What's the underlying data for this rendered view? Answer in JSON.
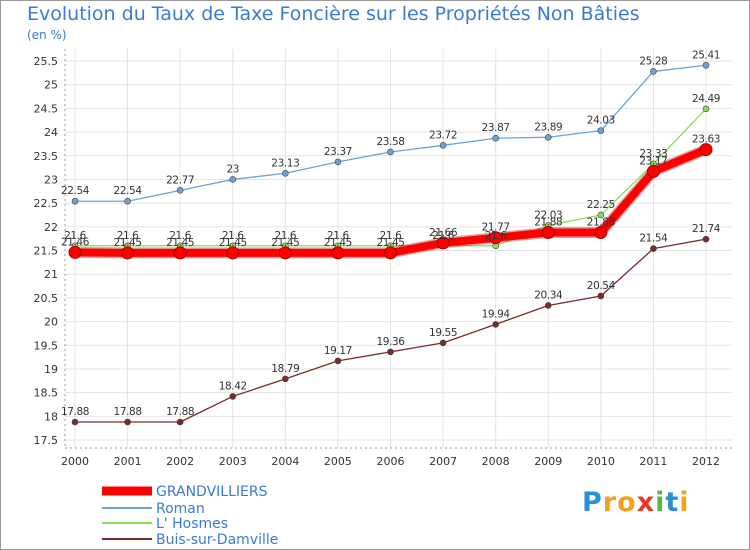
{
  "chart_data": {
    "type": "line",
    "title": "Evolution du Taux de Taxe Foncière sur les Propriétés Non Bâties",
    "unit_label": "(en %)",
    "xlabel": "",
    "ylabel": "(en %)",
    "categories": [
      "2000",
      "2001",
      "2002",
      "2003",
      "2004",
      "2005",
      "2006",
      "2007",
      "2008",
      "2009",
      "2010",
      "2011",
      "2012"
    ],
    "ylim": [
      17.5,
      25.5
    ],
    "yticks": [
      "17.5",
      "18",
      "18.5",
      "19",
      "19.5",
      "20",
      "20.5",
      "21",
      "21.5",
      "22",
      "22.5",
      "23",
      "23.5",
      "24",
      "24.5",
      "25",
      "25.5"
    ],
    "grid": true,
    "series": [
      {
        "name": "GRANDVILLIERS",
        "color": "#ff0000",
        "values": [
          21.46,
          21.45,
          21.45,
          21.45,
          21.45,
          21.45,
          21.45,
          21.66,
          21.77,
          21.88,
          21.88,
          23.17,
          23.63
        ],
        "labels": [
          "21.46",
          "21.45",
          "21.45",
          "21.45",
          "21.45",
          "21.45",
          "21.45",
          "21.66",
          "21.77",
          "21.88",
          "21.88",
          "23.17",
          "23.63"
        ]
      },
      {
        "name": "Roman",
        "color": "#6aa3d8",
        "values": [
          22.54,
          22.54,
          22.77,
          23,
          23.13,
          23.37,
          23.58,
          23.72,
          23.87,
          23.89,
          24.03,
          25.28,
          25.41
        ],
        "labels": [
          "22.54",
          "22.54",
          "22.77",
          "23",
          "23.13",
          "23.37",
          "23.58",
          "23.72",
          "23.87",
          "23.89",
          "24.03",
          "25.28",
          "25.41"
        ]
      },
      {
        "name": "L' Hosmes",
        "color": "#88dd55",
        "values": [
          21.6,
          21.6,
          21.6,
          21.6,
          21.6,
          21.6,
          21.6,
          21.6,
          21.6,
          22.03,
          22.25,
          23.33,
          24.49
        ],
        "labels": [
          "21.6",
          "21.6",
          "21.6",
          "21.6",
          "21.6",
          "21.6",
          "21.6",
          "21.6",
          "21.6",
          "22.03",
          "22.25",
          "23.33",
          "24.49"
        ]
      },
      {
        "name": "Buis-sur-Damville",
        "color": "#7a2a2a",
        "values": [
          17.88,
          17.88,
          17.88,
          18.42,
          18.79,
          19.17,
          19.36,
          19.55,
          19.94,
          20.34,
          20.54,
          21.54,
          21.74
        ],
        "labels": [
          "17.88",
          "17.88",
          "17.88",
          "18.42",
          "18.79",
          "19.17",
          "19.36",
          "19.55",
          "19.94",
          "20.34",
          "20.54",
          "21.54",
          "21.74"
        ]
      }
    ],
    "legend": {
      "placement": "bottom-left"
    }
  },
  "logo": {
    "letters": [
      "P",
      "r",
      "o",
      "x",
      "i",
      "t",
      "i"
    ],
    "colors": [
      "#2b8fd6",
      "#f2a31b",
      "#f2a31b",
      "#e53a2b",
      "#56b848",
      "#2b8fd6",
      "#f2a31b"
    ]
  }
}
